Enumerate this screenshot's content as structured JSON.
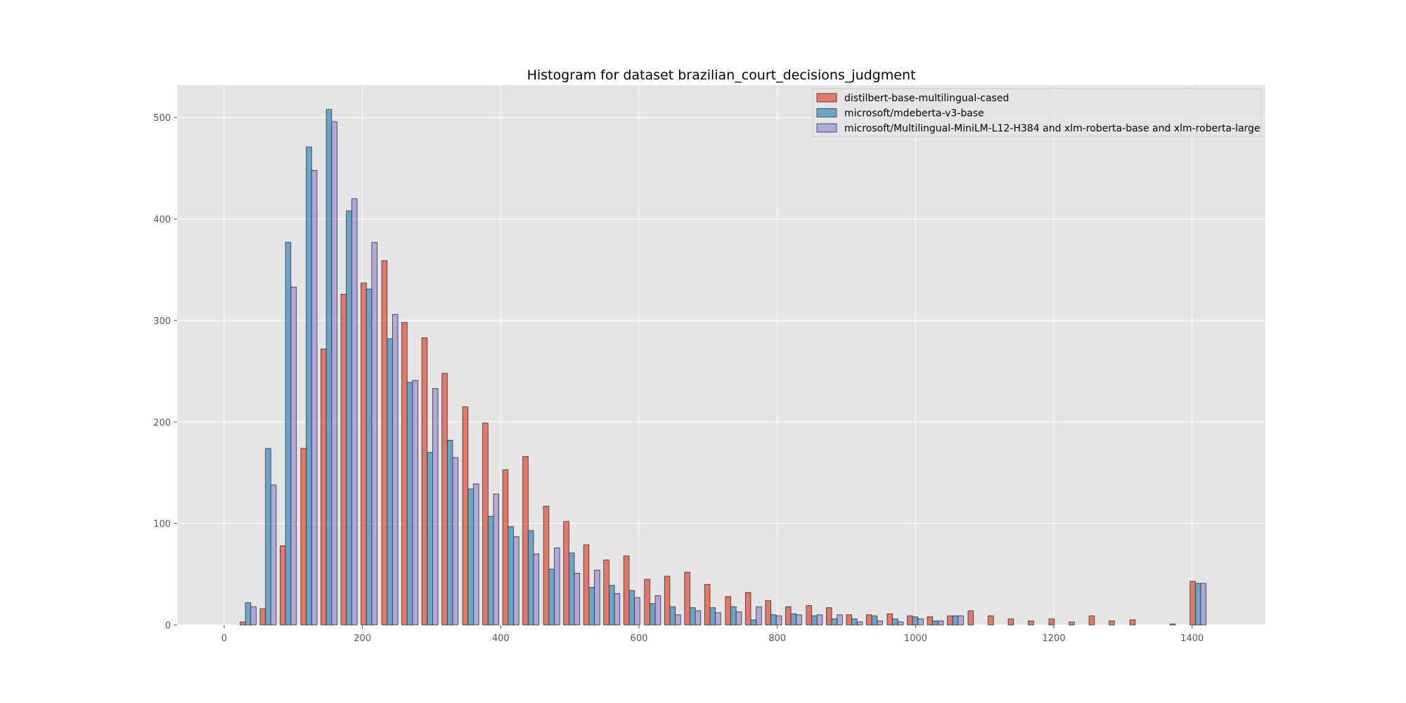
{
  "chart_data": {
    "type": "bar",
    "title": "Histogram for dataset brazilian_court_decisions_judgment",
    "xlabel": "",
    "ylabel": "",
    "xlim": [
      -68,
      1506
    ],
    "ylim": [
      0,
      532
    ],
    "xticks": [
      "0",
      "200",
      "400",
      "600",
      "800",
      "1000",
      "1200",
      "1400"
    ],
    "yticks": [
      "0",
      "100",
      "200",
      "300",
      "400",
      "500"
    ],
    "grid": true,
    "legend_position": "top-right",
    "bin_width": 29.2,
    "series": [
      {
        "name": "distilbert-base-multilingual-cased",
        "color": "#E24A33",
        "bin_starts": [
          20,
          49,
          78,
          108,
          137,
          166,
          195,
          225,
          254,
          283,
          312,
          342,
          371,
          400,
          429,
          459,
          488,
          517,
          546,
          575,
          605,
          634,
          663,
          692,
          722,
          751,
          780,
          809,
          839,
          868,
          897,
          926,
          956,
          985,
          1014,
          1043,
          1073,
          1102,
          1131,
          1160,
          1190,
          1219,
          1248,
          1277,
          1307,
          1336,
          1365,
          1394
        ],
        "values": [
          3,
          16,
          78,
          174,
          272,
          326,
          337,
          359,
          298,
          283,
          248,
          215,
          199,
          153,
          166,
          117,
          102,
          79,
          64,
          68,
          45,
          48,
          52,
          40,
          28,
          32,
          24,
          18,
          19,
          17,
          10,
          10,
          11,
          9,
          8,
          9,
          14,
          9,
          6,
          4,
          6,
          3,
          9,
          4,
          5,
          0,
          1,
          43
        ]
      },
      {
        "name": "microsoft/mdeberta-v3-base",
        "color": "#348ABD",
        "bin_starts": [
          20,
          49,
          78,
          108,
          137,
          166,
          195,
          225,
          254,
          283,
          312,
          342,
          371,
          400,
          429,
          459,
          488,
          517,
          546,
          575,
          605,
          634,
          663,
          692,
          722,
          751,
          780,
          809,
          839,
          868,
          897,
          926,
          956,
          985,
          1014,
          1043,
          1073,
          1102,
          1131,
          1160,
          1190,
          1219,
          1248,
          1277,
          1307,
          1336,
          1365,
          1394
        ],
        "values": [
          22,
          174,
          377,
          471,
          508,
          408,
          331,
          282,
          239,
          170,
          182,
          134,
          107,
          97,
          93,
          55,
          71,
          37,
          39,
          34,
          21,
          18,
          17,
          17,
          18,
          5,
          10,
          11,
          9,
          6,
          6,
          9,
          6,
          8,
          4,
          9,
          0,
          0,
          0,
          0,
          0,
          0,
          0,
          0,
          0,
          0,
          0,
          41
        ]
      },
      {
        "name": "microsoft/Multilingual-MiniLM-L12-H384 and xlm-roberta-base and xlm-roberta-large",
        "color": "#988ED5",
        "bin_starts": [
          20,
          49,
          78,
          108,
          137,
          166,
          195,
          225,
          254,
          283,
          312,
          342,
          371,
          400,
          429,
          459,
          488,
          517,
          546,
          575,
          605,
          634,
          663,
          692,
          722,
          751,
          780,
          809,
          839,
          868,
          897,
          926,
          956,
          985,
          1014,
          1043,
          1073,
          1102,
          1131,
          1160,
          1190,
          1219,
          1248,
          1277,
          1307,
          1336,
          1365,
          1394
        ],
        "values": [
          18,
          138,
          333,
          448,
          496,
          420,
          377,
          306,
          241,
          233,
          165,
          139,
          129,
          87,
          70,
          76,
          51,
          54,
          31,
          27,
          29,
          10,
          14,
          12,
          13,
          18,
          9,
          10,
          10,
          10,
          3,
          4,
          3,
          6,
          4,
          9,
          0,
          0,
          0,
          0,
          0,
          0,
          0,
          0,
          0,
          0,
          0,
          41
        ]
      }
    ]
  }
}
